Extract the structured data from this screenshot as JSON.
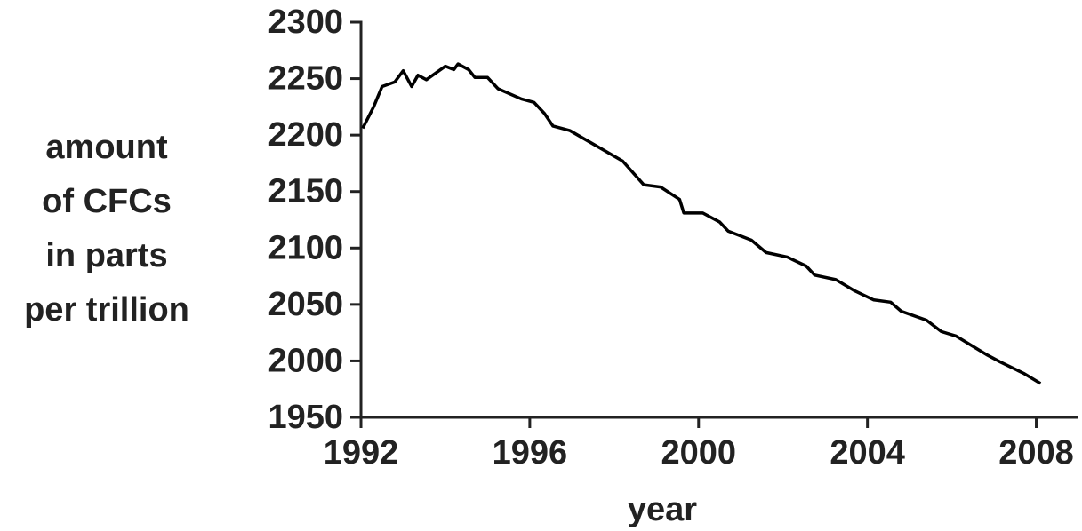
{
  "chart_data": {
    "type": "line",
    "ylabel": [
      "amount",
      "of CFCs",
      "in parts",
      "per trillion"
    ],
    "xlabel": "year",
    "xlim": [
      1992,
      2009
    ],
    "xticks": [
      1992,
      1996,
      2000,
      2004,
      2008
    ],
    "ylim": [
      1950,
      2300
    ],
    "yticks": [
      1950,
      2000,
      2050,
      2100,
      2150,
      2200,
      2250,
      2300
    ],
    "series": [
      {
        "color": "#000000",
        "x": [
          1992.04,
          1992.3,
          1992.5,
          1992.8,
          1993.0,
          1993.2,
          1993.35,
          1993.55,
          1994.0,
          1994.2,
          1994.3,
          1994.55,
          1994.7,
          1995.0,
          1995.25,
          1995.8,
          1996.1,
          1996.35,
          1996.55,
          1996.95,
          1998.2,
          1998.7,
          1999.1,
          1999.55,
          1999.65,
          2000.1,
          2000.5,
          2000.7,
          2001.25,
          2001.6,
          2002.1,
          2002.55,
          2002.75,
          2003.25,
          2003.7,
          2004.15,
          2004.55,
          2004.8,
          2005.4,
          2005.75,
          2006.1,
          2006.45,
          2006.85,
          2007.15,
          2007.7,
          2008.1
        ],
        "values": [
          2206,
          2225,
          2243,
          2247,
          2257,
          2243,
          2253,
          2249,
          2261,
          2258,
          2263,
          2258,
          2251,
          2251,
          2241,
          2232,
          2229,
          2219,
          2208,
          2204,
          2177,
          2156,
          2154,
          2143,
          2131,
          2131,
          2123,
          2115,
          2107,
          2096,
          2092,
          2084,
          2076,
          2072,
          2062,
          2054,
          2052,
          2044,
          2036,
          2026,
          2022,
          2014,
          2005,
          1999,
          1989,
          1980
        ]
      }
    ]
  }
}
